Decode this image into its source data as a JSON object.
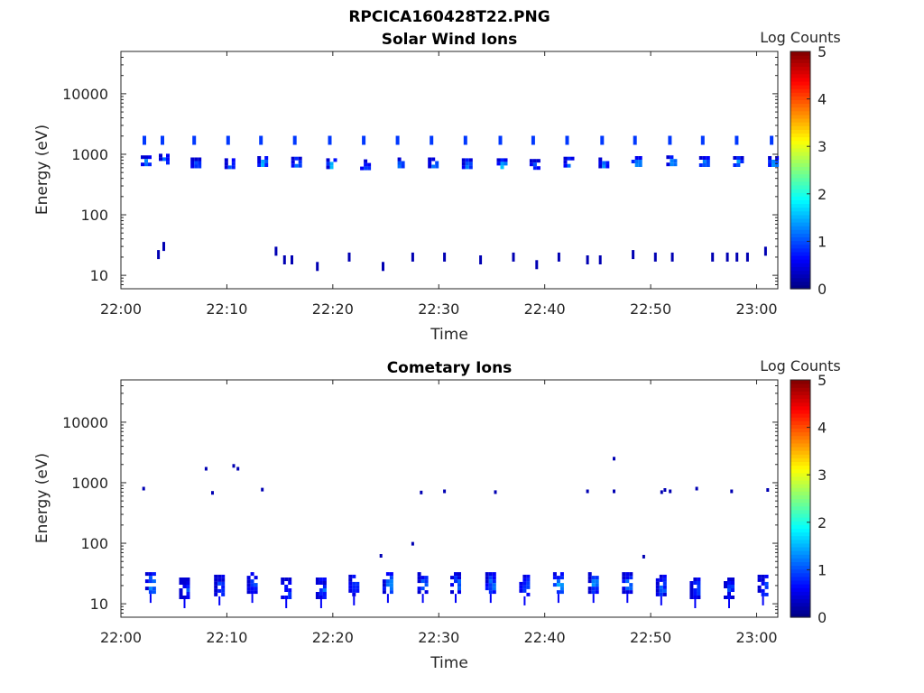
{
  "figure": {
    "title": "RPCICA160428T22.PNG"
  },
  "chart_data": [
    {
      "type": "heatmap",
      "title": "Solar Wind Ions",
      "xlabel": "Time",
      "ylabel": "Energy (eV)",
      "x_ticks": [
        "22:00",
        "22:10",
        "22:20",
        "22:30",
        "22:40",
        "22:50",
        "23:00"
      ],
      "y_ticks": [
        "10",
        "100",
        "1000",
        "10000"
      ],
      "y_scale": "log",
      "ylim": [
        6,
        50000
      ],
      "xlim": [
        "22:00",
        "23:02"
      ],
      "colorbar": {
        "label": "Log Counts",
        "ticks": [
          "0",
          "1",
          "2",
          "3",
          "4",
          "5"
        ],
        "range": [
          0,
          5
        ],
        "colormap": "jet"
      },
      "blobs": [
        {
          "t": 22.3,
          "e": 780,
          "level": 1.6
        },
        {
          "t": 24.0,
          "e": 830,
          "level": 1.2
        },
        {
          "t": 27.0,
          "e": 720,
          "level": 1.4
        },
        {
          "t": 30.2,
          "e": 700,
          "level": 1.3
        },
        {
          "t": 33.3,
          "e": 760,
          "level": 1.7
        },
        {
          "t": 36.5,
          "e": 740,
          "level": 1.5
        },
        {
          "t": 39.8,
          "e": 700,
          "level": 1.8
        },
        {
          "t": 43.0,
          "e": 670,
          "level": 1.2
        },
        {
          "t": 46.2,
          "e": 720,
          "level": 1.6
        },
        {
          "t": 49.4,
          "e": 720,
          "level": 1.7
        },
        {
          "t": 52.6,
          "e": 700,
          "level": 1.4
        },
        {
          "t": 55.9,
          "e": 700,
          "level": 1.9
        },
        {
          "t": 59.0,
          "e": 680,
          "level": 1.3
        },
        {
          "t": 62.2,
          "e": 740,
          "level": 1.6
        },
        {
          "t": 65.5,
          "e": 720,
          "level": 1.5
        },
        {
          "t": 68.6,
          "e": 760,
          "level": 1.7
        },
        {
          "t": 71.9,
          "e": 780,
          "level": 1.8
        },
        {
          "t": 75.0,
          "e": 760,
          "level": 1.6
        },
        {
          "t": 78.2,
          "e": 760,
          "level": 1.6
        },
        {
          "t": 81.5,
          "e": 760,
          "level": 1.9
        }
      ],
      "upper_blobs_eV": 1700,
      "low_marks": [
        {
          "t": 23.5,
          "e": 22
        },
        {
          "t": 24.0,
          "e": 30
        },
        {
          "t": 34.6,
          "e": 25
        },
        {
          "t": 35.4,
          "e": 18
        },
        {
          "t": 36.1,
          "e": 18
        },
        {
          "t": 38.5,
          "e": 14
        },
        {
          "t": 41.5,
          "e": 20
        },
        {
          "t": 44.7,
          "e": 14
        },
        {
          "t": 47.5,
          "e": 20
        },
        {
          "t": 50.5,
          "e": 20
        },
        {
          "t": 53.9,
          "e": 18
        },
        {
          "t": 57.0,
          "e": 20
        },
        {
          "t": 59.2,
          "e": 15
        },
        {
          "t": 61.3,
          "e": 20
        },
        {
          "t": 64.0,
          "e": 18
        },
        {
          "t": 65.2,
          "e": 18
        },
        {
          "t": 68.3,
          "e": 22
        },
        {
          "t": 70.4,
          "e": 20
        },
        {
          "t": 72.0,
          "e": 20
        },
        {
          "t": 75.8,
          "e": 20
        },
        {
          "t": 77.2,
          "e": 20
        },
        {
          "t": 78.1,
          "e": 20
        },
        {
          "t": 79.1,
          "e": 20
        },
        {
          "t": 80.8,
          "e": 25
        },
        {
          "t": 84.0,
          "e": 25
        }
      ]
    },
    {
      "type": "heatmap",
      "title": "Cometary Ions",
      "xlabel": "Time",
      "ylabel": "Energy (eV)",
      "x_ticks": [
        "22:00",
        "22:10",
        "22:20",
        "22:30",
        "22:40",
        "22:50",
        "23:00"
      ],
      "y_ticks": [
        "10",
        "100",
        "1000",
        "10000"
      ],
      "y_scale": "log",
      "ylim": [
        6,
        50000
      ],
      "xlim": [
        "22:00",
        "23:02"
      ],
      "colorbar": {
        "label": "Log Counts",
        "ticks": [
          "0",
          "1",
          "2",
          "3",
          "4",
          "5"
        ],
        "range": [
          0,
          5
        ],
        "colormap": "jet"
      },
      "blobs": [
        {
          "t": 22.8,
          "e": 22,
          "level": 1.5
        },
        {
          "t": 26.0,
          "e": 18,
          "level": 1.1
        },
        {
          "t": 29.3,
          "e": 20,
          "level": 1.2
        },
        {
          "t": 32.4,
          "e": 22,
          "level": 1.2
        },
        {
          "t": 35.6,
          "e": 18,
          "level": 1.1
        },
        {
          "t": 38.9,
          "e": 18,
          "level": 1.2
        },
        {
          "t": 42.0,
          "e": 20,
          "level": 1.2
        },
        {
          "t": 45.2,
          "e": 22,
          "level": 1.5
        },
        {
          "t": 48.5,
          "e": 22,
          "level": 1.2
        },
        {
          "t": 51.6,
          "e": 22,
          "level": 1.3
        },
        {
          "t": 54.9,
          "e": 22,
          "level": 1.4
        },
        {
          "t": 58.1,
          "e": 20,
          "level": 1.2
        },
        {
          "t": 61.3,
          "e": 22,
          "level": 1.7
        },
        {
          "t": 64.6,
          "e": 22,
          "level": 1.4
        },
        {
          "t": 67.8,
          "e": 22,
          "level": 1.3
        },
        {
          "t": 71.0,
          "e": 20,
          "level": 1.2
        },
        {
          "t": 74.2,
          "e": 18,
          "level": 1.2
        },
        {
          "t": 77.4,
          "e": 18,
          "level": 1.0
        },
        {
          "t": 80.6,
          "e": 20,
          "level": 1.1
        },
        {
          "t": 83.8,
          "e": 20,
          "level": 1.4
        }
      ],
      "sparse_points": [
        {
          "t": 22.1,
          "e": 800
        },
        {
          "t": 28.0,
          "e": 1700
        },
        {
          "t": 28.6,
          "e": 680
        },
        {
          "t": 30.6,
          "e": 1900
        },
        {
          "t": 31.0,
          "e": 1700
        },
        {
          "t": 33.3,
          "e": 770
        },
        {
          "t": 44.5,
          "e": 62
        },
        {
          "t": 47.5,
          "e": 98
        },
        {
          "t": 48.3,
          "e": 690
        },
        {
          "t": 50.5,
          "e": 720
        },
        {
          "t": 55.3,
          "e": 700
        },
        {
          "t": 64.0,
          "e": 720
        },
        {
          "t": 66.5,
          "e": 2500
        },
        {
          "t": 66.5,
          "e": 720
        },
        {
          "t": 69.3,
          "e": 60
        },
        {
          "t": 71.0,
          "e": 700
        },
        {
          "t": 71.3,
          "e": 760
        },
        {
          "t": 71.8,
          "e": 720
        },
        {
          "t": 74.3,
          "e": 800
        },
        {
          "t": 77.6,
          "e": 720
        },
        {
          "t": 81.0,
          "e": 760
        }
      ]
    }
  ]
}
